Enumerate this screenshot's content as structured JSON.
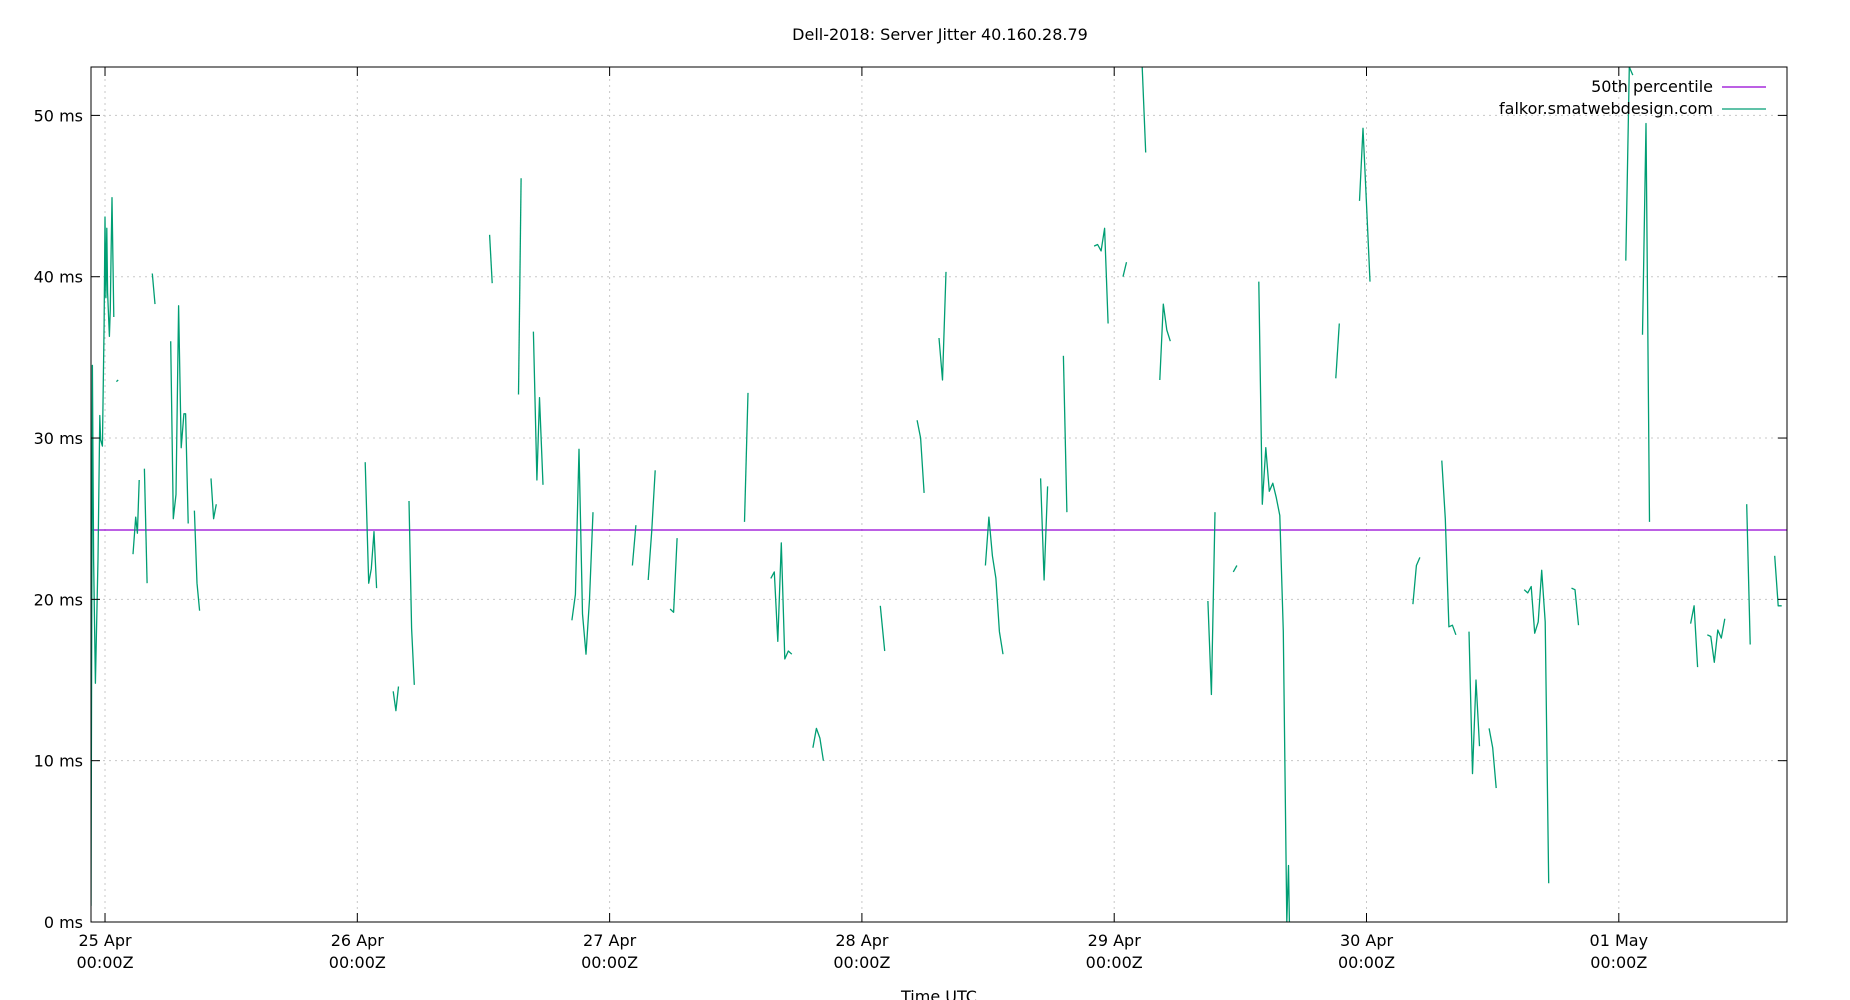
{
  "chart_data": {
    "type": "line",
    "title": "Dell-2018: Server Jitter 40.160.28.79",
    "xlabel": "Time UTC",
    "ylabel": "",
    "y_unit": "ms",
    "ylim": [
      0,
      53
    ],
    "y_ticks": [
      {
        "value": 0,
        "label": "0 ms"
      },
      {
        "value": 10,
        "label": "10 ms"
      },
      {
        "value": 20,
        "label": "20 ms"
      },
      {
        "value": 30,
        "label": "30 ms"
      },
      {
        "value": 40,
        "label": "40 ms"
      },
      {
        "value": 50,
        "label": "50 ms"
      }
    ],
    "xlim": [
      "2018-04-24T22:40Z",
      "2018-05-01T16:00Z"
    ],
    "x_ticks": [
      {
        "value": "2018-04-25T00:00Z",
        "line1": "25 Apr",
        "line2": "00:00Z"
      },
      {
        "value": "2018-04-26T00:00Z",
        "line1": "26 Apr",
        "line2": "00:00Z"
      },
      {
        "value": "2018-04-27T00:00Z",
        "line1": "27 Apr",
        "line2": "00:00Z"
      },
      {
        "value": "2018-04-28T00:00Z",
        "line1": "28 Apr",
        "line2": "00:00Z"
      },
      {
        "value": "2018-04-29T00:00Z",
        "line1": "29 Apr",
        "line2": "00:00Z"
      },
      {
        "value": "2018-04-30T00:00Z",
        "line1": "30 Apr",
        "line2": "00:00Z"
      },
      {
        "value": "2018-05-01T00:00Z",
        "line1": "01 May",
        "line2": "00:00Z"
      }
    ],
    "grid": true,
    "legend_position": "top-right",
    "series": [
      {
        "name": "50th percentile",
        "color": "#9400d3",
        "kind": "hline",
        "value": 24.3
      },
      {
        "name": "falkor.smatwebdesign.com",
        "color": "#009e73",
        "kind": "segments",
        "segments": [
          [
            [
              "2018-04-24T22:40Z",
              1.0
            ],
            [
              "2018-04-24T22:48Z",
              34.5
            ],
            [
              "2018-04-24T22:55Z",
              22.5
            ],
            [
              "2018-04-24T23:05Z",
              14.8
            ],
            [
              "2018-04-24T23:20Z",
              22.5
            ],
            [
              "2018-04-24T23:30Z",
              31.4
            ],
            [
              "2018-04-24T23:35Z",
              29.9
            ],
            [
              "2018-04-24T23:45Z",
              29.5
            ],
            [
              "2018-04-24T23:55Z",
              37.0
            ],
            [
              "2018-04-25T00:00Z",
              43.7
            ],
            [
              "2018-04-25T00:05Z",
              38.7
            ],
            [
              "2018-04-25T00:10Z",
              43.0
            ],
            [
              "2018-04-25T00:15Z",
              39.0
            ],
            [
              "2018-04-25T00:25Z",
              36.3
            ],
            [
              "2018-04-25T00:30Z",
              38.0
            ],
            [
              "2018-04-25T00:35Z",
              41.5
            ],
            [
              "2018-04-25T00:40Z",
              44.9
            ],
            [
              "2018-04-25T00:50Z",
              37.5
            ]
          ],
          [
            [
              "2018-04-25T01:05Z",
              33.5
            ],
            [
              "2018-04-25T01:15Z",
              33.6
            ]
          ],
          [
            [
              "2018-04-25T02:40Z",
              22.8
            ],
            [
              "2018-04-25T02:55Z",
              25.1
            ],
            [
              "2018-04-25T03:05Z",
              24.1
            ],
            [
              "2018-04-25T03:15Z",
              27.4
            ]
          ],
          [
            [
              "2018-04-25T03:45Z",
              28.1
            ],
            [
              "2018-04-25T04:00Z",
              21.0
            ]
          ],
          [
            [
              "2018-04-25T04:30Z",
              40.2
            ],
            [
              "2018-04-25T04:45Z",
              38.3
            ]
          ],
          [
            [
              "2018-04-25T06:15Z",
              36.0
            ],
            [
              "2018-04-25T06:30Z",
              25.0
            ],
            [
              "2018-04-25T06:45Z",
              26.5
            ],
            [
              "2018-04-25T07:00Z",
              38.2
            ],
            [
              "2018-04-25T07:15Z",
              29.4
            ],
            [
              "2018-04-25T07:30Z",
              31.5
            ],
            [
              "2018-04-25T07:40Z",
              31.5
            ],
            [
              "2018-04-25T07:55Z",
              24.7
            ]
          ],
          [
            [
              "2018-04-25T08:30Z",
              25.5
            ],
            [
              "2018-04-25T08:45Z",
              21.0
            ],
            [
              "2018-04-25T09:00Z",
              19.3
            ]
          ],
          [
            [
              "2018-04-25T10:05Z",
              27.5
            ],
            [
              "2018-04-25T10:20Z",
              25.0
            ],
            [
              "2018-04-25T10:35Z",
              25.9
            ]
          ],
          [
            [
              "2018-04-26T00:45Z",
              28.5
            ],
            [
              "2018-04-26T01:05Z",
              21.0
            ],
            [
              "2018-04-26T01:20Z",
              21.9
            ],
            [
              "2018-04-26T01:35Z",
              24.2
            ],
            [
              "2018-04-26T01:50Z",
              20.7
            ]
          ],
          [
            [
              "2018-04-26T03:25Z",
              14.3
            ],
            [
              "2018-04-26T03:40Z",
              13.1
            ],
            [
              "2018-04-26T03:55Z",
              14.6
            ]
          ],
          [
            [
              "2018-04-26T04:55Z",
              26.1
            ],
            [
              "2018-04-26T05:10Z",
              18.2
            ],
            [
              "2018-04-26T05:25Z",
              14.7
            ]
          ],
          [
            [
              "2018-04-26T12:35Z",
              42.6
            ],
            [
              "2018-04-26T12:50Z",
              39.6
            ]
          ],
          [
            [
              "2018-04-26T15:20Z",
              32.7
            ],
            [
              "2018-04-26T15:35Z",
              46.1
            ]
          ],
          [
            [
              "2018-04-26T16:45Z",
              36.6
            ],
            [
              "2018-04-26T17:05Z",
              27.4
            ],
            [
              "2018-04-26T17:20Z",
              32.5
            ],
            [
              "2018-04-26T17:40Z",
              27.1
            ]
          ],
          [
            [
              "2018-04-26T20:25Z",
              18.7
            ],
            [
              "2018-04-26T20:45Z",
              20.3
            ],
            [
              "2018-04-26T21:05Z",
              29.3
            ],
            [
              "2018-04-26T21:25Z",
              19.1
            ],
            [
              "2018-04-26T21:45Z",
              16.6
            ],
            [
              "2018-04-26T22:05Z",
              20.0
            ],
            [
              "2018-04-26T22:25Z",
              25.4
            ]
          ],
          [
            [
              "2018-04-27T02:10Z",
              22.1
            ],
            [
              "2018-04-27T02:30Z",
              24.6
            ]
          ],
          [
            [
              "2018-04-27T03:40Z",
              21.2
            ],
            [
              "2018-04-27T04:00Z",
              24.2
            ],
            [
              "2018-04-27T04:20Z",
              28.0
            ]
          ],
          [
            [
              "2018-04-27T05:45Z",
              19.4
            ],
            [
              "2018-04-27T06:05Z",
              19.2
            ],
            [
              "2018-04-27T06:25Z",
              23.8
            ]
          ],
          [
            [
              "2018-04-27T12:50Z",
              24.8
            ],
            [
              "2018-04-27T13:10Z",
              32.8
            ]
          ],
          [
            [
              "2018-04-27T15:20Z",
              21.3
            ],
            [
              "2018-04-27T15:40Z",
              21.7
            ],
            [
              "2018-04-27T16:00Z",
              17.4
            ],
            [
              "2018-04-27T16:20Z",
              23.5
            ],
            [
              "2018-04-27T16:40Z",
              16.3
            ],
            [
              "2018-04-27T17:00Z",
              16.8
            ],
            [
              "2018-04-27T17:20Z",
              16.6
            ]
          ],
          [
            [
              "2018-04-27T19:20Z",
              10.8
            ],
            [
              "2018-04-27T19:40Z",
              12.0
            ],
            [
              "2018-04-27T20:00Z",
              11.4
            ],
            [
              "2018-04-27T20:20Z",
              10.0
            ]
          ],
          [
            [
              "2018-04-28T01:45Z",
              19.6
            ],
            [
              "2018-04-28T02:10Z",
              16.8
            ]
          ],
          [
            [
              "2018-04-28T05:15Z",
              31.1
            ],
            [
              "2018-04-28T05:35Z",
              30.0
            ],
            [
              "2018-04-28T05:55Z",
              26.6
            ]
          ],
          [
            [
              "2018-04-28T07:20Z",
              36.2
            ],
            [
              "2018-04-28T07:40Z",
              33.6
            ],
            [
              "2018-04-28T08:00Z",
              40.3
            ]
          ],
          [
            [
              "2018-04-28T11:45Z",
              22.1
            ],
            [
              "2018-04-28T12:05Z",
              25.1
            ],
            [
              "2018-04-28T12:25Z",
              22.7
            ],
            [
              "2018-04-28T12:45Z",
              21.3
            ],
            [
              "2018-04-28T13:05Z",
              18.0
            ],
            [
              "2018-04-28T13:25Z",
              16.6
            ]
          ],
          [
            [
              "2018-04-28T17:00Z",
              27.5
            ],
            [
              "2018-04-28T17:20Z",
              21.2
            ],
            [
              "2018-04-28T17:40Z",
              27.0
            ]
          ],
          [
            [
              "2018-04-28T19:10Z",
              35.1
            ],
            [
              "2018-04-28T19:30Z",
              25.4
            ]
          ],
          [
            [
              "2018-04-28T22:05Z",
              41.9
            ],
            [
              "2018-04-28T22:25Z",
              42.0
            ],
            [
              "2018-04-28T22:45Z",
              41.6
            ],
            [
              "2018-04-28T23:05Z",
              43.0
            ],
            [
              "2018-04-28T23:25Z",
              37.1
            ]
          ],
          [
            [
              "2018-04-29T00:50Z",
              40.0
            ],
            [
              "2018-04-29T01:10Z",
              40.9
            ]
          ],
          [
            [
              "2018-04-29T02:40Z",
              53.0
            ],
            [
              "2018-04-29T03:00Z",
              47.7
            ]
          ],
          [
            [
              "2018-04-29T04:20Z",
              33.6
            ],
            [
              "2018-04-29T04:40Z",
              38.3
            ],
            [
              "2018-04-29T05:00Z",
              36.7
            ],
            [
              "2018-04-29T05:20Z",
              36.0
            ]
          ],
          [
            [
              "2018-04-29T08:55Z",
              19.9
            ],
            [
              "2018-04-29T09:15Z",
              14.1
            ],
            [
              "2018-04-29T09:35Z",
              25.4
            ]
          ],
          [
            [
              "2018-04-29T11:20Z",
              21.7
            ],
            [
              "2018-04-29T11:40Z",
              22.1
            ]
          ],
          [
            [
              "2018-04-29T13:45Z",
              39.7
            ],
            [
              "2018-04-29T14:05Z",
              25.9
            ],
            [
              "2018-04-29T14:25Z",
              29.4
            ],
            [
              "2018-04-29T14:45Z",
              26.7
            ],
            [
              "2018-04-29T15:05Z",
              27.2
            ],
            [
              "2018-04-29T15:25Z",
              26.3
            ],
            [
              "2018-04-29T15:45Z",
              25.2
            ],
            [
              "2018-04-29T16:05Z",
              18.0
            ],
            [
              "2018-04-29T16:25Z",
              0.0
            ],
            [
              "2018-04-29T16:35Z",
              3.5
            ],
            [
              "2018-04-29T16:40Z",
              0.0
            ]
          ],
          [
            [
              "2018-04-29T21:05Z",
              33.7
            ],
            [
              "2018-04-29T21:25Z",
              37.1
            ]
          ],
          [
            [
              "2018-04-29T23:20Z",
              44.7
            ],
            [
              "2018-04-29T23:40Z",
              49.2
            ],
            [
              "2018-04-30T00:00Z",
              44.5
            ],
            [
              "2018-04-30T00:20Z",
              39.7
            ]
          ],
          [
            [
              "2018-04-30T04:25Z",
              19.7
            ],
            [
              "2018-04-30T04:45Z",
              22.1
            ],
            [
              "2018-04-30T05:05Z",
              22.6
            ]
          ],
          [
            [
              "2018-04-30T07:10Z",
              28.6
            ],
            [
              "2018-04-30T07:30Z",
              25.0
            ],
            [
              "2018-04-30T07:50Z",
              18.3
            ],
            [
              "2018-04-30T08:10Z",
              18.4
            ],
            [
              "2018-04-30T08:30Z",
              17.8
            ]
          ],
          [
            [
              "2018-04-30T09:45Z",
              18.0
            ],
            [
              "2018-04-30T10:05Z",
              9.2
            ],
            [
              "2018-04-30T10:25Z",
              15.0
            ],
            [
              "2018-04-30T10:45Z",
              10.9
            ]
          ],
          [
            [
              "2018-04-30T11:40Z",
              12.0
            ],
            [
              "2018-04-30T12:00Z",
              10.8
            ],
            [
              "2018-04-30T12:20Z",
              8.3
            ]
          ],
          [
            [
              "2018-04-30T15:00Z",
              20.6
            ],
            [
              "2018-04-30T15:20Z",
              20.4
            ],
            [
              "2018-04-30T15:40Z",
              20.8
            ],
            [
              "2018-04-30T16:00Z",
              17.9
            ],
            [
              "2018-04-30T16:20Z",
              18.6
            ],
            [
              "2018-04-30T16:40Z",
              21.8
            ],
            [
              "2018-04-30T17:00Z",
              18.6
            ],
            [
              "2018-04-30T17:20Z",
              2.4
            ]
          ],
          [
            [
              "2018-04-30T19:30Z",
              20.7
            ],
            [
              "2018-04-30T19:50Z",
              20.6
            ],
            [
              "2018-04-30T20:10Z",
              18.4
            ]
          ],
          [
            [
              "2018-05-01T00:40Z",
              41.0
            ],
            [
              "2018-05-01T01:00Z",
              53.0
            ],
            [
              "2018-05-01T01:20Z",
              52.5
            ]
          ],
          [
            [
              "2018-05-01T02:15Z",
              36.4
            ],
            [
              "2018-05-01T02:35Z",
              49.5
            ],
            [
              "2018-05-01T02:55Z",
              24.8
            ]
          ],
          [
            [
              "2018-05-01T06:50Z",
              18.5
            ],
            [
              "2018-05-01T07:10Z",
              19.6
            ],
            [
              "2018-05-01T07:30Z",
              15.8
            ]
          ],
          [
            [
              "2018-05-01T08:25Z",
              17.8
            ],
            [
              "2018-05-01T08:45Z",
              17.7
            ],
            [
              "2018-05-01T09:05Z",
              16.1
            ],
            [
              "2018-05-01T09:25Z",
              18.1
            ],
            [
              "2018-05-01T09:45Z",
              17.6
            ],
            [
              "2018-05-01T10:05Z",
              18.8
            ]
          ],
          [
            [
              "2018-05-01T12:10Z",
              25.9
            ],
            [
              "2018-05-01T12:30Z",
              17.2
            ]
          ],
          [
            [
              "2018-05-01T14:50Z",
              22.7
            ],
            [
              "2018-05-01T15:10Z",
              19.6
            ],
            [
              "2018-05-01T15:30Z",
              19.6
            ]
          ]
        ]
      }
    ]
  }
}
